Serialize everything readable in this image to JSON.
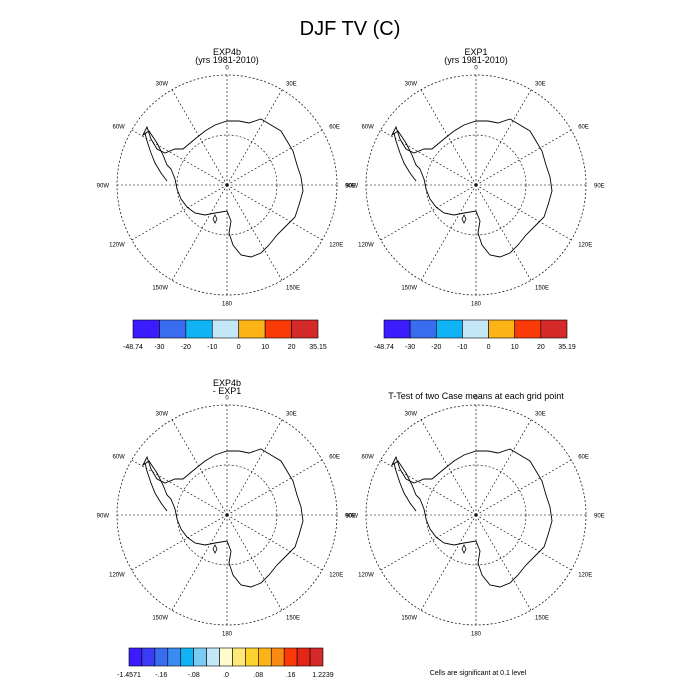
{
  "title": "DJF TV (C)",
  "coastline_color": "#000000",
  "grid_color": "#000000",
  "panels": [
    {
      "id": "exp4b",
      "title_lines": [
        "EXP4b",
        "(yrs 1981-2010)"
      ],
      "lon_labels": {
        "lon_0": "0",
        "lon_30e": "30E",
        "lon_60e": "60E",
        "lon_90e": "90E",
        "lon_120e": "120E",
        "lon_150e": "150E",
        "lon_180": "180",
        "lon_150w": "150W",
        "lon_120w": "120W",
        "lon_90w": "90W",
        "lon_60w": "60W",
        "lon_30w": "30W"
      }
    },
    {
      "id": "exp1",
      "title_lines": [
        "EXP1",
        "(yrs 1981-2010)"
      ],
      "lon_labels": {
        "lon_0": "0",
        "lon_30e": "30E",
        "lon_60e": "60E",
        "lon_90e": "90E",
        "lon_120e": "120E",
        "lon_150e": "150E",
        "lon_180": "180",
        "lon_150w": "150W",
        "lon_120w": "120W",
        "lon_90w": "90W",
        "lon_60w": "60W",
        "lon_30w": "30W"
      }
    },
    {
      "id": "diff",
      "title_lines": [
        "EXP4b",
        "- EXP1"
      ],
      "lon_labels": {
        "lon_0": "0",
        "lon_30e": "30E",
        "lon_60e": "60E",
        "lon_90e": "90E",
        "lon_120e": "120E",
        "lon_150e": "150E",
        "lon_180": "180",
        "lon_150w": "150W",
        "lon_120w": "120W",
        "lon_90w": "90W",
        "lon_60w": "60W",
        "lon_30w": "30W"
      }
    },
    {
      "id": "ttest",
      "title_lines": [
        "T-Test of two Case means at each grid point"
      ],
      "lon_labels": {
        "lon_0": "0",
        "lon_30e": "30E",
        "lon_60e": "60E",
        "lon_90e": "90E",
        "lon_120e": "120E",
        "lon_150e": "150E",
        "lon_180": "180",
        "lon_150w": "150W",
        "lon_120w": "120W",
        "lon_90w": "90W",
        "lon_60w": "60W",
        "lon_30w": "30W"
      }
    }
  ],
  "colorbars": [
    {
      "id": "exp4b-colorbar",
      "colors": [
        "#3a1cff",
        "#3a6cf0",
        "#10b4f5",
        "#c4e8f8",
        "#fbb318",
        "#fa3a07",
        "#d42a2a"
      ],
      "labels": [
        "-48.74",
        "-30",
        "-20",
        "-10",
        "0",
        "10",
        "20",
        "35.15"
      ]
    },
    {
      "id": "exp1-colorbar",
      "colors": [
        "#3a1cff",
        "#3a6cf0",
        "#10b4f5",
        "#c4e8f8",
        "#fbb318",
        "#fa3a07",
        "#d42a2a"
      ],
      "labels": [
        "-48.74",
        "-30",
        "-20",
        "-10",
        "0",
        "10",
        "20",
        "35.19"
      ]
    },
    {
      "id": "diff-colorbar",
      "colors": [
        "#3a1cff",
        "#3a3cf8",
        "#3a6cf0",
        "#3a8cf0",
        "#10b4f5",
        "#7acbf2",
        "#c4e8f8",
        "#fefccc",
        "#fde878",
        "#fbd32c",
        "#fbb318",
        "#fb8a14",
        "#fa3a07",
        "#e42616",
        "#d42a2a"
      ],
      "labels": [
        "-1.4571",
        "-.16",
        "-.08",
        ".0",
        ".08",
        ".16",
        "1.2239"
      ]
    }
  ],
  "footnote": "Cells are significant at 0.1 level"
}
